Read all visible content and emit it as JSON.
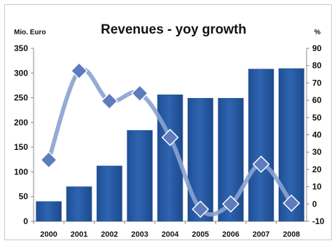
{
  "chart_data": {
    "type": "bar",
    "title": "Revenues - yoy growth",
    "y_left_label": "Mio. Euro",
    "y_right_label": "%",
    "categories": [
      "2000",
      "2001",
      "2002",
      "2003",
      "2004",
      "2005",
      "2006",
      "2007",
      "2008"
    ],
    "ylim_left": [
      0,
      350
    ],
    "ylim_right": [
      -10,
      90
    ],
    "yticks_left": [
      "0",
      "50",
      "100",
      "150",
      "200",
      "250",
      "300",
      "350"
    ],
    "yticks_right": [
      "-10",
      "0",
      "10",
      "20",
      "30",
      "40",
      "50",
      "60",
      "70",
      "80",
      "90"
    ],
    "series": [
      {
        "type": "bar",
        "axis": "left",
        "color": "#2e64b0",
        "values": [
          40,
          70,
          112,
          184,
          256,
          249,
          249,
          308,
          309
        ]
      },
      {
        "type": "line",
        "axis": "right",
        "smooth": true,
        "color": "#8aa2d0",
        "marker_color": "#5d7bbd",
        "values": [
          25.5,
          77,
          59.5,
          64,
          38.5,
          -3,
          0,
          23,
          0.5
        ]
      }
    ],
    "grid": false,
    "legend": "none"
  }
}
